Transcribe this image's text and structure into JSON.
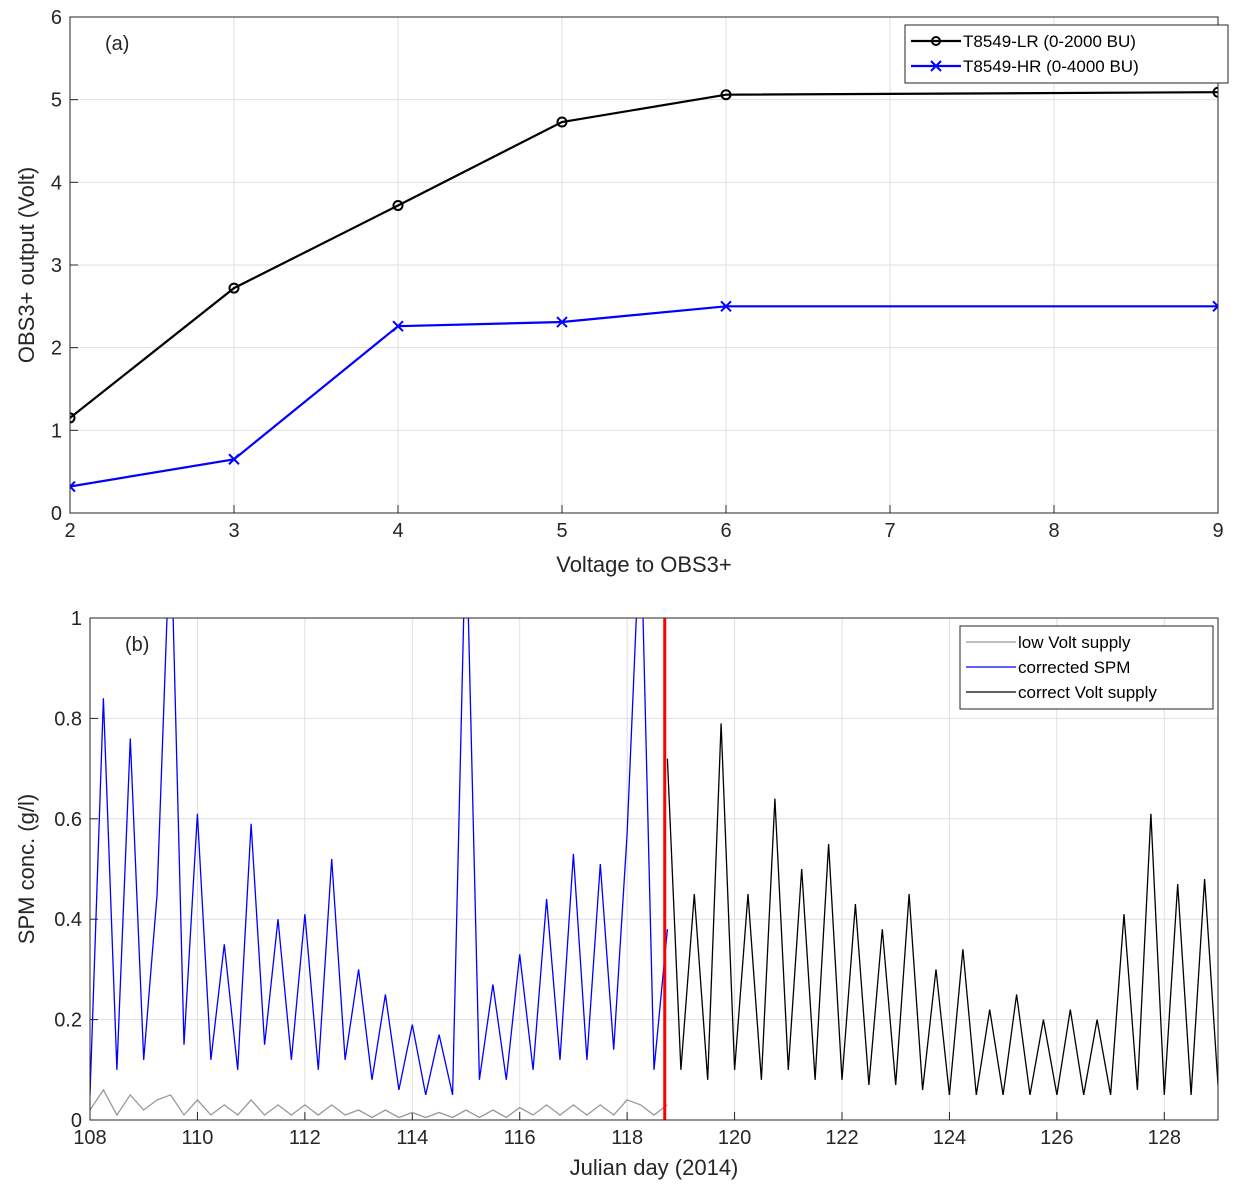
{
  "chart_data": [
    {
      "type": "line",
      "annotation": "(a)",
      "xlabel": "Voltage to OBS3+",
      "ylabel": "OBS3+ output (Volt)",
      "x": [
        2,
        3,
        4,
        5,
        6,
        9
      ],
      "series": [
        {
          "name": "T8549-LR (0-2000 BU)",
          "color": "#000000",
          "marker": "circle",
          "values": [
            1.15,
            2.72,
            3.72,
            4.73,
            5.06,
            5.09
          ]
        },
        {
          "name": "T8549-HR (0-4000 BU)",
          "color": "#0000ff",
          "marker": "x",
          "values": [
            0.32,
            0.65,
            2.26,
            2.31,
            2.5,
            2.5
          ]
        }
      ],
      "xlim": [
        2,
        9
      ],
      "xticks": [
        2,
        3,
        4,
        5,
        6,
        7,
        8,
        9
      ],
      "ylim": [
        0,
        6
      ],
      "yticks": [
        0,
        1,
        2,
        3,
        4,
        5,
        6
      ],
      "grid": true,
      "legend": "top-right"
    },
    {
      "type": "line",
      "annotation": "(b)",
      "xlabel": "Julian day (2014)",
      "ylabel": "SPM conc. (g/l)",
      "x": [
        108,
        108.25,
        108.5,
        108.75,
        109,
        109.25,
        109.5,
        109.75,
        110,
        110.25,
        110.5,
        110.75,
        111,
        111.25,
        111.5,
        111.75,
        112,
        112.25,
        112.5,
        112.75,
        113,
        113.25,
        113.5,
        113.75,
        114,
        114.25,
        114.5,
        114.75,
        115,
        115.25,
        115.5,
        115.75,
        116,
        116.25,
        116.5,
        116.75,
        117,
        117.25,
        117.5,
        117.75,
        118,
        118.25,
        118.5,
        118.75,
        119,
        119.25,
        119.5,
        119.75,
        120,
        120.25,
        120.5,
        120.75,
        121,
        121.25,
        121.5,
        121.75,
        122,
        122.25,
        122.5,
        122.75,
        123,
        123.25,
        123.5,
        123.75,
        124,
        124.25,
        124.5,
        124.75,
        125,
        125.25,
        125.5,
        125.75,
        126,
        126.25,
        126.5,
        126.75,
        127,
        127.25,
        127.5,
        127.75,
        128,
        128.25,
        128.5,
        128.75,
        129
      ],
      "series": [
        {
          "name": "low Volt supply",
          "color": "#999999",
          "values": [
            0.02,
            0.06,
            0.01,
            0.05,
            0.02,
            0.04,
            0.05,
            0.01,
            0.04,
            0.01,
            0.03,
            0.01,
            0.04,
            0.01,
            0.03,
            0.01,
            0.03,
            0.01,
            0.03,
            0.01,
            0.02,
            0.005,
            0.02,
            0.005,
            0.015,
            0.005,
            0.015,
            0.005,
            0.02,
            0.005,
            0.02,
            0.005,
            0.025,
            0.01,
            0.03,
            0.01,
            0.03,
            0.01,
            0.03,
            0.01,
            0.04,
            0.03,
            0.01,
            0.03,
            null,
            null,
            null,
            null,
            null,
            null,
            null,
            null,
            null,
            null,
            null,
            null,
            null,
            null,
            null,
            null,
            null,
            null,
            null,
            null,
            null,
            null,
            null,
            null,
            null,
            null,
            null,
            null,
            null,
            null,
            null,
            null,
            null,
            null,
            null,
            null,
            null,
            null,
            null,
            null,
            null
          ]
        },
        {
          "name": "corrected SPM",
          "color": "#0000ff",
          "values": [
            0.05,
            0.84,
            0.1,
            0.76,
            0.12,
            0.45,
            1.2,
            0.15,
            0.61,
            0.12,
            0.35,
            0.1,
            0.59,
            0.15,
            0.4,
            0.12,
            0.41,
            0.1,
            0.52,
            0.12,
            0.3,
            0.08,
            0.25,
            0.06,
            0.19,
            0.05,
            0.17,
            0.05,
            1.2,
            0.08,
            0.27,
            0.08,
            0.33,
            0.1,
            0.44,
            0.12,
            0.53,
            0.12,
            0.51,
            0.14,
            0.57,
            1.2,
            0.1,
            0.38,
            null,
            null,
            null,
            null,
            null,
            null,
            null,
            null,
            null,
            null,
            null,
            null,
            null,
            null,
            null,
            null,
            null,
            null,
            null,
            null,
            null,
            null,
            null,
            null,
            null,
            null,
            null,
            null,
            null,
            null,
            null,
            null,
            null,
            null,
            null,
            null,
            null,
            null,
            null,
            null,
            null
          ]
        },
        {
          "name": "correct Volt supply",
          "color": "#000000",
          "values": [
            null,
            null,
            null,
            null,
            null,
            null,
            null,
            null,
            null,
            null,
            null,
            null,
            null,
            null,
            null,
            null,
            null,
            null,
            null,
            null,
            null,
            null,
            null,
            null,
            null,
            null,
            null,
            null,
            null,
            null,
            null,
            null,
            null,
            null,
            null,
            null,
            null,
            null,
            null,
            null,
            null,
            null,
            null,
            0.72,
            0.1,
            0.45,
            0.08,
            0.79,
            0.1,
            0.45,
            0.08,
            0.64,
            0.1,
            0.5,
            0.08,
            0.55,
            0.08,
            0.43,
            0.07,
            0.38,
            0.07,
            0.45,
            0.06,
            0.3,
            0.05,
            0.34,
            0.05,
            0.22,
            0.05,
            0.25,
            0.05,
            0.2,
            0.05,
            0.22,
            0.05,
            0.2,
            0.05,
            0.41,
            0.06,
            0.61,
            0.05,
            0.47,
            0.05,
            0.48,
            0.07
          ]
        }
      ],
      "vline": 118.7,
      "vline_color": "#ff0000",
      "xlim": [
        108,
        129
      ],
      "xticks": [
        108,
        110,
        112,
        114,
        116,
        118,
        120,
        122,
        124,
        126,
        128
      ],
      "ylim": [
        0,
        1
      ],
      "yticks": [
        0,
        0.2,
        0.4,
        0.6,
        0.8,
        1
      ],
      "grid": true,
      "legend": "top-right"
    }
  ]
}
